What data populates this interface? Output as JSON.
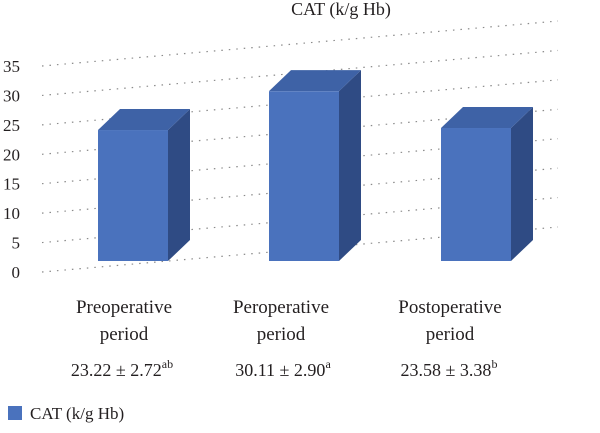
{
  "chart_data": {
    "type": "bar",
    "title": "CAT (k/g Hb)",
    "categories": [
      [
        "Preoperative",
        "period"
      ],
      [
        "Peroperative",
        "period"
      ],
      [
        "Postoperative",
        "period"
      ]
    ],
    "series": [
      {
        "name": "CAT (k/g Hb)",
        "values": [
          23.22,
          30.11,
          23.58
        ]
      }
    ],
    "value_labels": [
      {
        "main": "23.22 ± 2.72",
        "sup": "ab"
      },
      {
        "main": "30.11 ± 2.90",
        "sup": "a"
      },
      {
        "main": "23.58 ± 3.38",
        "sup": "b"
      }
    ],
    "y_ticks": [
      0,
      5,
      10,
      15,
      20,
      25,
      30,
      35
    ],
    "ylim": [
      0,
      35
    ],
    "grid": true,
    "legend_position": "bottom-left",
    "colors": {
      "bar_front": "#4a72bd",
      "bar_top": "#3e62a6",
      "bar_side": "#2f4b84",
      "grid": "#8a8a8a",
      "text": "#231f20"
    }
  }
}
